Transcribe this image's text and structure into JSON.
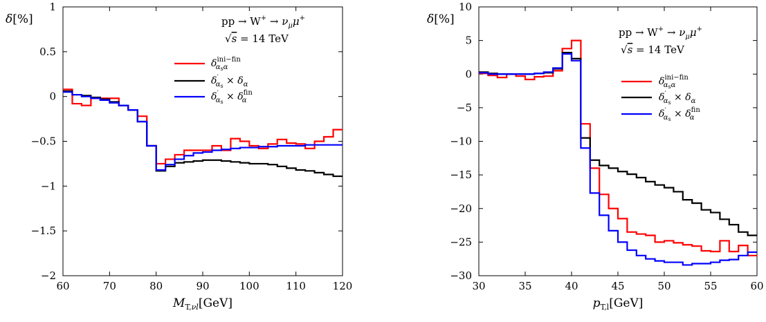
{
  "chart_data": [
    {
      "type": "line",
      "xlabel": "M_T,νl[GeV]",
      "ylabel": "δ[%]",
      "xlim": [
        60,
        120
      ],
      "ylim": [
        -2,
        1
      ],
      "x_ticks": [
        60,
        70,
        80,
        90,
        100,
        110,
        120
      ],
      "y_ticks": [
        -2,
        -1.5,
        -1,
        -0.5,
        0,
        0.5,
        1
      ],
      "x_tick_labels": [
        "60",
        "70",
        "80",
        "90",
        "100",
        "110",
        "120"
      ],
      "y_tick_labels": [
        "−2",
        "−1.5",
        "−1",
        "−0.5",
        "0",
        "0.5",
        "1"
      ],
      "annotation": [
        "pp → W⁺ → ν_μ μ⁺",
        "√s = 14 TeV"
      ],
      "legend_position": "upper-right",
      "bin_edges": [
        60,
        62,
        64,
        66,
        68,
        70,
        72,
        74,
        76,
        78,
        80,
        82,
        84,
        86,
        88,
        90,
        92,
        94,
        96,
        98,
        100,
        102,
        104,
        106,
        108,
        110,
        112,
        114,
        116,
        118,
        120
      ],
      "series": [
        {
          "name": "δ^{ini−fin}_{αsα}",
          "color": "#ff0000",
          "values": [
            0.08,
            -0.08,
            -0.1,
            -0.02,
            -0.02,
            -0.02,
            -0.1,
            -0.15,
            -0.22,
            -0.55,
            -0.75,
            -0.7,
            -0.65,
            -0.6,
            -0.6,
            -0.6,
            -0.55,
            -0.6,
            -0.47,
            -0.5,
            -0.55,
            -0.58,
            -0.53,
            -0.48,
            -0.52,
            -0.53,
            -0.58,
            -0.5,
            -0.45,
            -0.37
          ]
        },
        {
          "name": "δ′_{αs} × δ_α",
          "color": "#000000",
          "values": [
            0.06,
            0.02,
            0.01,
            -0.01,
            -0.03,
            -0.06,
            -0.1,
            -0.15,
            -0.28,
            -0.55,
            -0.83,
            -0.78,
            -0.74,
            -0.73,
            -0.72,
            -0.71,
            -0.71,
            -0.72,
            -0.73,
            -0.74,
            -0.75,
            -0.75,
            -0.76,
            -0.78,
            -0.8,
            -0.82,
            -0.83,
            -0.85,
            -0.87,
            -0.89
          ]
        },
        {
          "name": "δ′_{αs} × δ^{fin}_α",
          "color": "#0000ff",
          "values": [
            0.05,
            0.02,
            0.0,
            -0.02,
            -0.04,
            -0.07,
            -0.1,
            -0.15,
            -0.28,
            -0.55,
            -0.82,
            -0.76,
            -0.7,
            -0.66,
            -0.63,
            -0.62,
            -0.6,
            -0.59,
            -0.58,
            -0.57,
            -0.57,
            -0.56,
            -0.56,
            -0.55,
            -0.55,
            -0.55,
            -0.54,
            -0.54,
            -0.54,
            -0.54
          ]
        }
      ]
    },
    {
      "type": "line",
      "xlabel": "p_T,l[GeV]",
      "ylabel": "δ[%]",
      "xlim": [
        30,
        60
      ],
      "ylim": [
        -30,
        10
      ],
      "x_ticks": [
        30,
        35,
        40,
        45,
        50,
        55,
        60
      ],
      "y_ticks": [
        -30,
        -25,
        -20,
        -15,
        -10,
        -5,
        0,
        5,
        10
      ],
      "x_tick_labels": [
        "30",
        "35",
        "40",
        "45",
        "50",
        "55",
        "60"
      ],
      "y_tick_labels": [
        "−30",
        "−25",
        "−20",
        "−15",
        "−10",
        "−5",
        "0",
        "5",
        "10"
      ],
      "annotation": [
        "pp → W⁺ → ν_μ μ⁺",
        "√s = 14 TeV"
      ],
      "legend_position": "center-right",
      "bin_edges": [
        30,
        31,
        32,
        33,
        34,
        35,
        36,
        37,
        38,
        39,
        40,
        41,
        42,
        43,
        44,
        45,
        46,
        47,
        48,
        49,
        50,
        51,
        52,
        53,
        54,
        55,
        56,
        57,
        58,
        59,
        60
      ],
      "series": [
        {
          "name": "δ^{ini−fin}_{αsα}",
          "color": "#ff0000",
          "values": [
            0.1,
            -0.2,
            -0.5,
            0.0,
            -0.3,
            -0.8,
            -0.4,
            -0.3,
            0.5,
            3.8,
            5.0,
            -7.4,
            -14.0,
            -17.9,
            -20.0,
            -21.5,
            -23.5,
            -23.8,
            -24.0,
            -25.0,
            -24.8,
            -25.1,
            -25.4,
            -25.6,
            -26.3,
            -26.4,
            -24.8,
            -26.4,
            -25.5,
            -27.0
          ]
        },
        {
          "name": "δ′_{αs} × δ_α",
          "color": "#000000",
          "values": [
            0.3,
            0.1,
            0.0,
            0.0,
            0.0,
            0.0,
            0.1,
            0.2,
            0.8,
            3.2,
            2.3,
            -9.5,
            -12.8,
            -13.6,
            -14.0,
            -14.5,
            -14.9,
            -15.4,
            -16.0,
            -16.5,
            -16.9,
            -17.5,
            -18.7,
            -19.2,
            -20.2,
            -20.6,
            -21.6,
            -22.4,
            -23.5,
            -24.0
          ]
        },
        {
          "name": "δ′_{αs} × δ^{fin}_α",
          "color": "#0000ff",
          "values": [
            0.2,
            0.0,
            0.0,
            0.0,
            0.0,
            0.0,
            0.1,
            0.3,
            0.9,
            3.0,
            2.0,
            -11.0,
            -17.7,
            -21.0,
            -23.3,
            -25.0,
            -26.2,
            -27.0,
            -27.5,
            -27.8,
            -28.0,
            -28.0,
            -28.4,
            -28.2,
            -28.2,
            -28.0,
            -27.7,
            -27.6,
            -27.0,
            -26.5
          ]
        }
      ]
    }
  ]
}
